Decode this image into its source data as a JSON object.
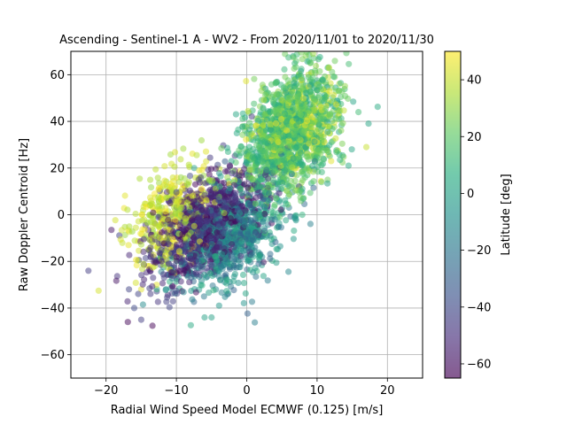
{
  "chart_data": {
    "type": "scatter",
    "title": "Ascending - Sentinel-1 A - WV2 - From 2020/11/01 to 2020/11/30",
    "xlabel": "Radial Wind Speed Model ECMWF (0.125) [m/s]",
    "ylabel": "Raw Doppler Centroid [Hz]",
    "xlim": [
      -25,
      25
    ],
    "ylim": [
      -70,
      70
    ],
    "xticks": [
      -20,
      -10,
      0,
      10,
      20
    ],
    "yticks": [
      -60,
      -40,
      -20,
      0,
      20,
      40,
      60
    ],
    "grid": true,
    "marker_alpha": 0.5,
    "colormap": "viridis",
    "colorbar": {
      "label": "Latitude [deg]",
      "range": [
        -65,
        50
      ],
      "ticks": [
        -60,
        -40,
        -20,
        0,
        20,
        40
      ]
    },
    "clusters": [
      {
        "lat_range": [
          -65,
          -40
        ],
        "center": [
          -6,
          -5
        ],
        "spread": [
          4,
          10
        ],
        "approx_points": 900
      },
      {
        "lat_range": [
          -30,
          10
        ],
        "center": [
          -2,
          -10
        ],
        "spread": [
          4,
          11
        ],
        "approx_points": 700
      },
      {
        "lat_range": [
          0,
          30
        ],
        "center": [
          6,
          35
        ],
        "spread": [
          3.5,
          13
        ],
        "approx_points": 1100
      },
      {
        "lat_range": [
          30,
          50
        ],
        "center": [
          -11,
          0
        ],
        "spread": [
          3,
          10
        ],
        "approx_points": 350
      },
      {
        "lat_range": [
          20,
          50
        ],
        "center": [
          7,
          38
        ],
        "spread": [
          3,
          10
        ],
        "approx_points": 350
      }
    ],
    "visible_outliers": [
      {
        "x": -22.5,
        "y": -24,
        "lat": -45
      },
      {
        "x": -15,
        "y": -45,
        "lat": -45
      },
      {
        "x": -16,
        "y": -40,
        "lat": -40
      },
      {
        "x": -6,
        "y": -44,
        "lat": 0
      },
      {
        "x": -5,
        "y": -44,
        "lat": 0
      },
      {
        "x": 17,
        "y": 29,
        "lat": 40
      },
      {
        "x": 12,
        "y": 23,
        "lat": 45
      },
      {
        "x": 11.5,
        "y": 15,
        "lat": 25
      },
      {
        "x": -15,
        "y": -32,
        "lat": 45
      }
    ]
  }
}
